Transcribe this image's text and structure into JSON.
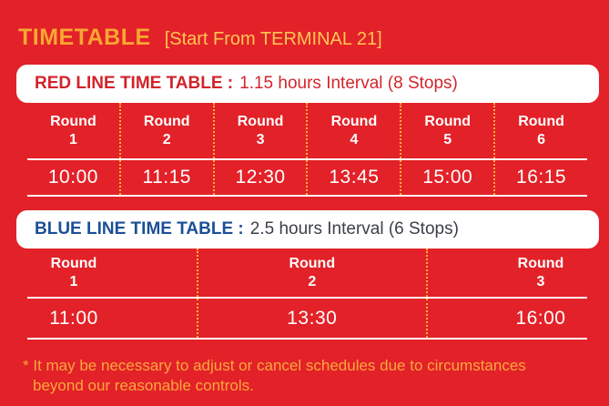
{
  "header": {
    "title": "TIMETABLE",
    "subtitle": "[Start From TERMINAL 21]"
  },
  "red_line": {
    "title": "RED LINE TIME TABLE :",
    "interval": "1.15 hours Interval (8 Stops)",
    "rounds": [
      {
        "label": "Round",
        "number": "1",
        "time": "10:00"
      },
      {
        "label": "Round",
        "number": "2",
        "time": "11:15"
      },
      {
        "label": "Round",
        "number": "3",
        "time": "12:30"
      },
      {
        "label": "Round",
        "number": "4",
        "time": "13:45"
      },
      {
        "label": "Round",
        "number": "5",
        "time": "15:00"
      },
      {
        "label": "Round",
        "number": "6",
        "time": "16:15"
      }
    ]
  },
  "blue_line": {
    "title": "BLUE LINE TIME TABLE :",
    "interval": "2.5 hours Interval (6 Stops)",
    "rounds": [
      {
        "label": "Round",
        "number": "1",
        "time": "11:00"
      },
      {
        "label": "Round",
        "number": "2",
        "time": "13:30"
      },
      {
        "label": "Round",
        "number": "3",
        "time": "16:00"
      }
    ]
  },
  "footnote": {
    "marker": "* ",
    "line1": "It may be necessary to adjust or cancel schedules due to circumstances",
    "line2": "beyond our reasonable controls."
  },
  "colors": {
    "background": "#E32128",
    "accent_yellow": "#F9A733",
    "divider_yellow": "#F9B233",
    "red_line_text": "#D2232A",
    "blue_line_text": "#1B4F96",
    "interval_dark_text": "#3C4049",
    "table_text": "#FFFFFF"
  }
}
